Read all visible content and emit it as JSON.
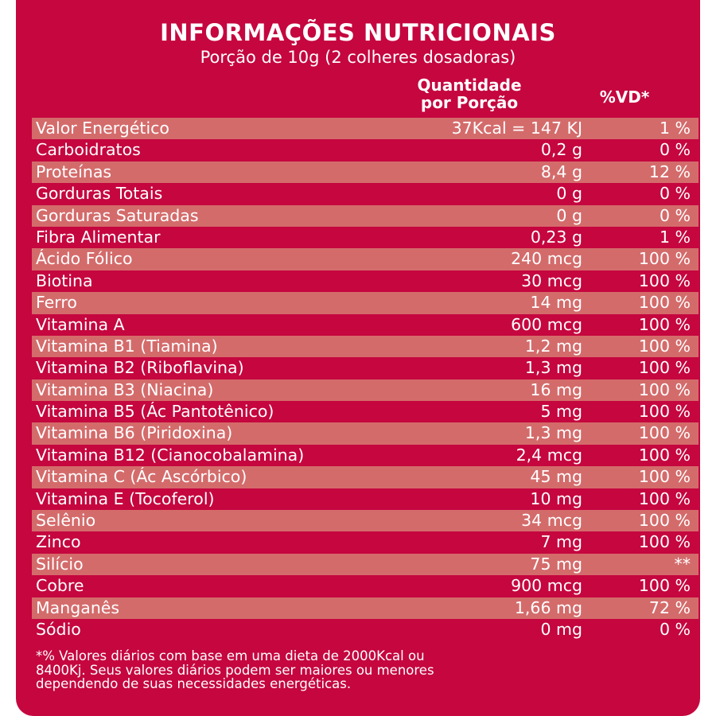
{
  "header": {
    "title": "INFORMAÇÕES NUTRICIONAIS",
    "serving": "Porção de 10g (2 colheres dosadoras)",
    "col_quantity_line1": "Quantidade",
    "col_quantity_line2": "por Porção",
    "col_dv": "%VD*"
  },
  "rows": [
    {
      "name": "Valor Energético",
      "qty": "37Kcal = 147 KJ",
      "dv": "1 %"
    },
    {
      "name": "Carboidratos",
      "qty": "0,2 g",
      "dv": "0 %"
    },
    {
      "name": "Proteínas",
      "qty": "8,4 g",
      "dv": "12 %"
    },
    {
      "name": "Gorduras Totais",
      "qty": "0 g",
      "dv": "0 %"
    },
    {
      "name": "Gorduras Saturadas",
      "qty": "0 g",
      "dv": "0 %"
    },
    {
      "name": "Fibra Alimentar",
      "qty": "0,23 g",
      "dv": "1 %"
    },
    {
      "name": "Ácido Fólico",
      "qty": "240 mcg",
      "dv": "100 %"
    },
    {
      "name": "Biotina",
      "qty": "30 mcg",
      "dv": "100 %"
    },
    {
      "name": "Ferro",
      "qty": "14 mg",
      "dv": "100 %"
    },
    {
      "name": "Vitamina A",
      "qty": "600 mcg",
      "dv": "100 %"
    },
    {
      "name": "Vitamina B1 (Tiamina)",
      "qty": "1,2 mg",
      "dv": "100 %"
    },
    {
      "name": "Vitamina B2 (Riboflavina)",
      "qty": "1,3 mg",
      "dv": "100 %"
    },
    {
      "name": "Vitamina B3 (Niacina)",
      "qty": "16 mg",
      "dv": "100 %"
    },
    {
      "name": "Vitamina B5 (Ác Pantotênico)",
      "qty": "5 mg",
      "dv": "100 %"
    },
    {
      "name": "Vitamina B6 (Piridoxina)",
      "qty": "1,3 mg",
      "dv": "100 %"
    },
    {
      "name": "Vitamina B12 (Cianocobalamina)",
      "qty": "2,4 mcg",
      "dv": "100 %"
    },
    {
      "name": "Vitamina C (Ác Ascórbico)",
      "qty": "45 mg",
      "dv": "100 %"
    },
    {
      "name": "Vitamina E (Tocoferol)",
      "qty": "10 mg",
      "dv": "100 %"
    },
    {
      "name": "Selênio",
      "qty": "34 mcg",
      "dv": "100 %"
    },
    {
      "name": "Zinco",
      "qty": "7 mg",
      "dv": "100 %"
    },
    {
      "name": "Silício",
      "qty": "75 mg",
      "dv": "**"
    },
    {
      "name": "Cobre",
      "qty": "900 mcg",
      "dv": "100 %"
    },
    {
      "name": "Manganês",
      "qty": "1,66 mg",
      "dv": "72 %"
    },
    {
      "name": "Sódio",
      "qty": "0 mg",
      "dv": "0 %"
    }
  ],
  "footnote": {
    "line1": "*% Valores diários com base em uma dieta de 2000Kcal ou",
    "line2": "8400Kj. Seus valores diários podem ser maiores ou  menores",
    "line3": "dependendo de suas necessidades energéticas."
  }
}
